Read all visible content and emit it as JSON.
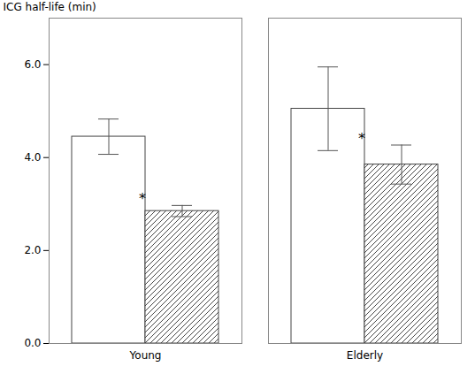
{
  "chart_data": {
    "type": "bar",
    "categories": [
      "Young",
      "Elderly"
    ],
    "series": [
      {
        "values": [
          4.45,
          5.05
        ],
        "errors": [
          0.38,
          0.9
        ],
        "color": "white"
      },
      {
        "values": [
          2.85,
          3.85
        ],
        "errors": [
          0.12,
          0.42
        ],
        "color": "white"
      }
    ],
    "ylabel": "ICG half-life (min)",
    "ylim": [
      0,
      7.0
    ],
    "yticks": [
      0,
      2,
      4,
      6
    ],
    "grid": false,
    "annotations": [
      {
        "text": "*",
        "x": "Young"
      },
      {
        "text": "*",
        "x": "Elderly"
      }
    ]
  }
}
